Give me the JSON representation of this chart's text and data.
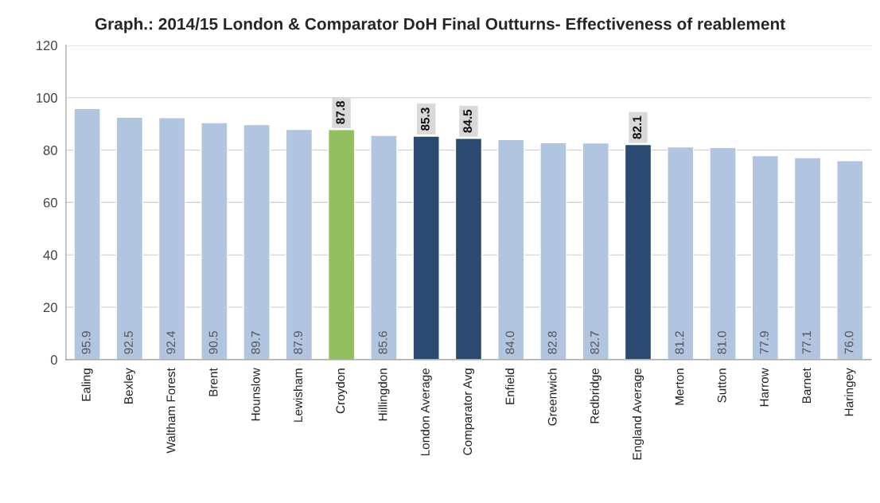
{
  "chart_data": {
    "type": "bar",
    "title": "Graph.: 2014/15 London & Comparator DoH Final Outturns- Effectiveness of reablement",
    "categories": [
      "Ealing",
      "Bexley",
      "Waltham Forest",
      "Brent",
      "Hounslow",
      "Lewisham",
      "Croydon",
      "Hillingdon",
      "London Average",
      "Comparator Avg",
      "Enfield",
      "Greenwich",
      "Redbridge",
      "England Average",
      "Merton",
      "Sutton",
      "Harrow",
      "Barnet",
      "Haringey"
    ],
    "values": [
      95.9,
      92.5,
      92.4,
      90.5,
      89.7,
      87.9,
      87.8,
      85.6,
      85.3,
      84.5,
      84.0,
      82.8,
      82.7,
      82.1,
      81.2,
      81.0,
      77.9,
      77.1,
      76.0
    ],
    "value_labels": [
      "95.9",
      "92.5",
      "92.4",
      "90.5",
      "89.7",
      "87.9",
      "87.8",
      "85.6",
      "85.3",
      "84.5",
      "84.0",
      "82.8",
      "82.7",
      "82.1",
      "81.2",
      "81.0",
      "77.9",
      "77.1",
      "76.0"
    ],
    "colors": [
      "#a9c3e8",
      "#a9c3e8",
      "#a9c3e8",
      "#a9c3e8",
      "#a9c3e8",
      "#a9c3e8",
      "#92d050",
      "#a9c3e8",
      "#1f497d",
      "#1f497d",
      "#a9c3e8",
      "#a9c3e8",
      "#a9c3e8",
      "#1f497d",
      "#a9c3e8",
      "#a9c3e8",
      "#a9c3e8",
      "#a9c3e8",
      "#a9c3e8"
    ],
    "ylim": [
      0,
      120
    ],
    "yticks": [
      0,
      20,
      40,
      60,
      80,
      100,
      120
    ],
    "grid": "y",
    "legend": false
  }
}
